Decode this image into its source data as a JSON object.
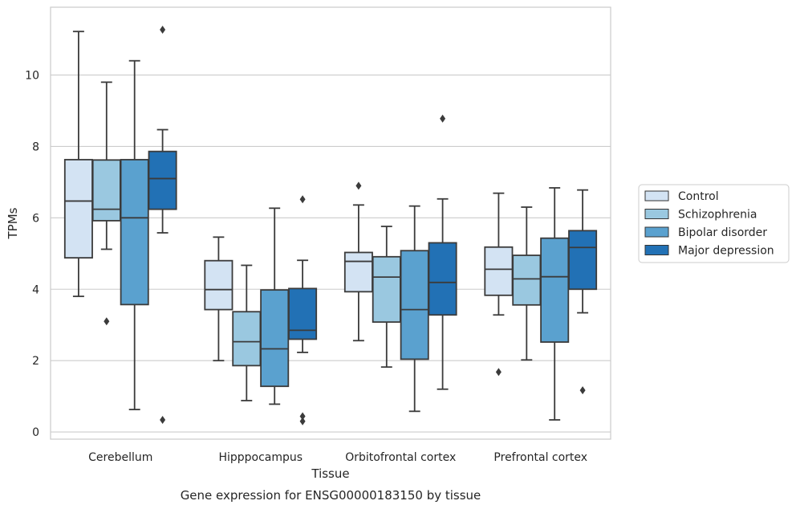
{
  "chart_data": {
    "type": "boxplot",
    "title": "",
    "caption": "Gene expression for ENSG00000183150 by tissue",
    "xlabel": "Tissue",
    "ylabel": "TPMs",
    "ylim": [
      -0.2,
      11.9
    ],
    "yticks": [
      0,
      2,
      4,
      6,
      8,
      10
    ],
    "grid": "horizontal",
    "legend_position": "right",
    "categories": [
      "Cerebellum",
      "Hipppocampus",
      "Orbitofrontal cortex",
      "Prefrontal cortex"
    ],
    "series": [
      {
        "name": "Control",
        "color": "#d3e3f3",
        "boxes": [
          {
            "whislo": 3.8,
            "q1": 4.88,
            "med": 6.47,
            "q3": 7.63,
            "whishi": 11.22,
            "fliers": []
          },
          {
            "whislo": 2.0,
            "q1": 3.43,
            "med": 3.99,
            "q3": 4.8,
            "whishi": 5.46,
            "fliers": []
          },
          {
            "whislo": 2.56,
            "q1": 3.93,
            "med": 4.78,
            "q3": 5.03,
            "whishi": 6.36,
            "fliers": [
              6.9
            ]
          },
          {
            "whislo": 3.28,
            "q1": 3.83,
            "med": 4.56,
            "q3": 5.18,
            "whishi": 6.69,
            "fliers": [
              1.68
            ]
          }
        ]
      },
      {
        "name": "Schizophrenia",
        "color": "#9ac8e0",
        "boxes": [
          {
            "whislo": 5.12,
            "q1": 5.92,
            "med": 6.24,
            "q3": 7.62,
            "whishi": 9.8,
            "fliers": [
              3.1
            ]
          },
          {
            "whislo": 0.88,
            "q1": 1.86,
            "med": 2.53,
            "q3": 3.37,
            "whishi": 4.67,
            "fliers": []
          },
          {
            "whislo": 1.82,
            "q1": 3.08,
            "med": 4.34,
            "q3": 4.91,
            "whishi": 5.76,
            "fliers": []
          },
          {
            "whislo": 2.02,
            "q1": 3.56,
            "med": 4.29,
            "q3": 4.95,
            "whishi": 6.3,
            "fliers": []
          }
        ]
      },
      {
        "name": "Bipolar disorder",
        "color": "#5aa1cf",
        "boxes": [
          {
            "whislo": 0.63,
            "q1": 3.57,
            "med": 6.0,
            "q3": 7.63,
            "whishi": 10.4,
            "fliers": []
          },
          {
            "whislo": 0.78,
            "q1": 1.28,
            "med": 2.33,
            "q3": 3.98,
            "whishi": 6.27,
            "fliers": []
          },
          {
            "whislo": 0.58,
            "q1": 2.04,
            "med": 3.43,
            "q3": 5.08,
            "whishi": 6.33,
            "fliers": []
          },
          {
            "whislo": 0.34,
            "q1": 2.52,
            "med": 4.35,
            "q3": 5.43,
            "whishi": 6.84,
            "fliers": []
          }
        ]
      },
      {
        "name": "Major depression",
        "color": "#2271b5",
        "boxes": [
          {
            "whislo": 5.58,
            "q1": 6.24,
            "med": 7.1,
            "q3": 7.86,
            "whishi": 8.47,
            "fliers": [
              0.34,
              11.27
            ]
          },
          {
            "whislo": 2.23,
            "q1": 2.6,
            "med": 2.85,
            "q3": 4.02,
            "whishi": 4.81,
            "fliers": [
              0.3,
              0.44,
              6.52
            ]
          },
          {
            "whislo": 1.2,
            "q1": 3.28,
            "med": 4.19,
            "q3": 5.3,
            "whishi": 6.53,
            "fliers": [
              8.78
            ]
          },
          {
            "whislo": 3.34,
            "q1": 4.0,
            "med": 5.17,
            "q3": 5.64,
            "whishi": 6.78,
            "fliers": [
              1.17
            ]
          }
        ]
      }
    ]
  }
}
